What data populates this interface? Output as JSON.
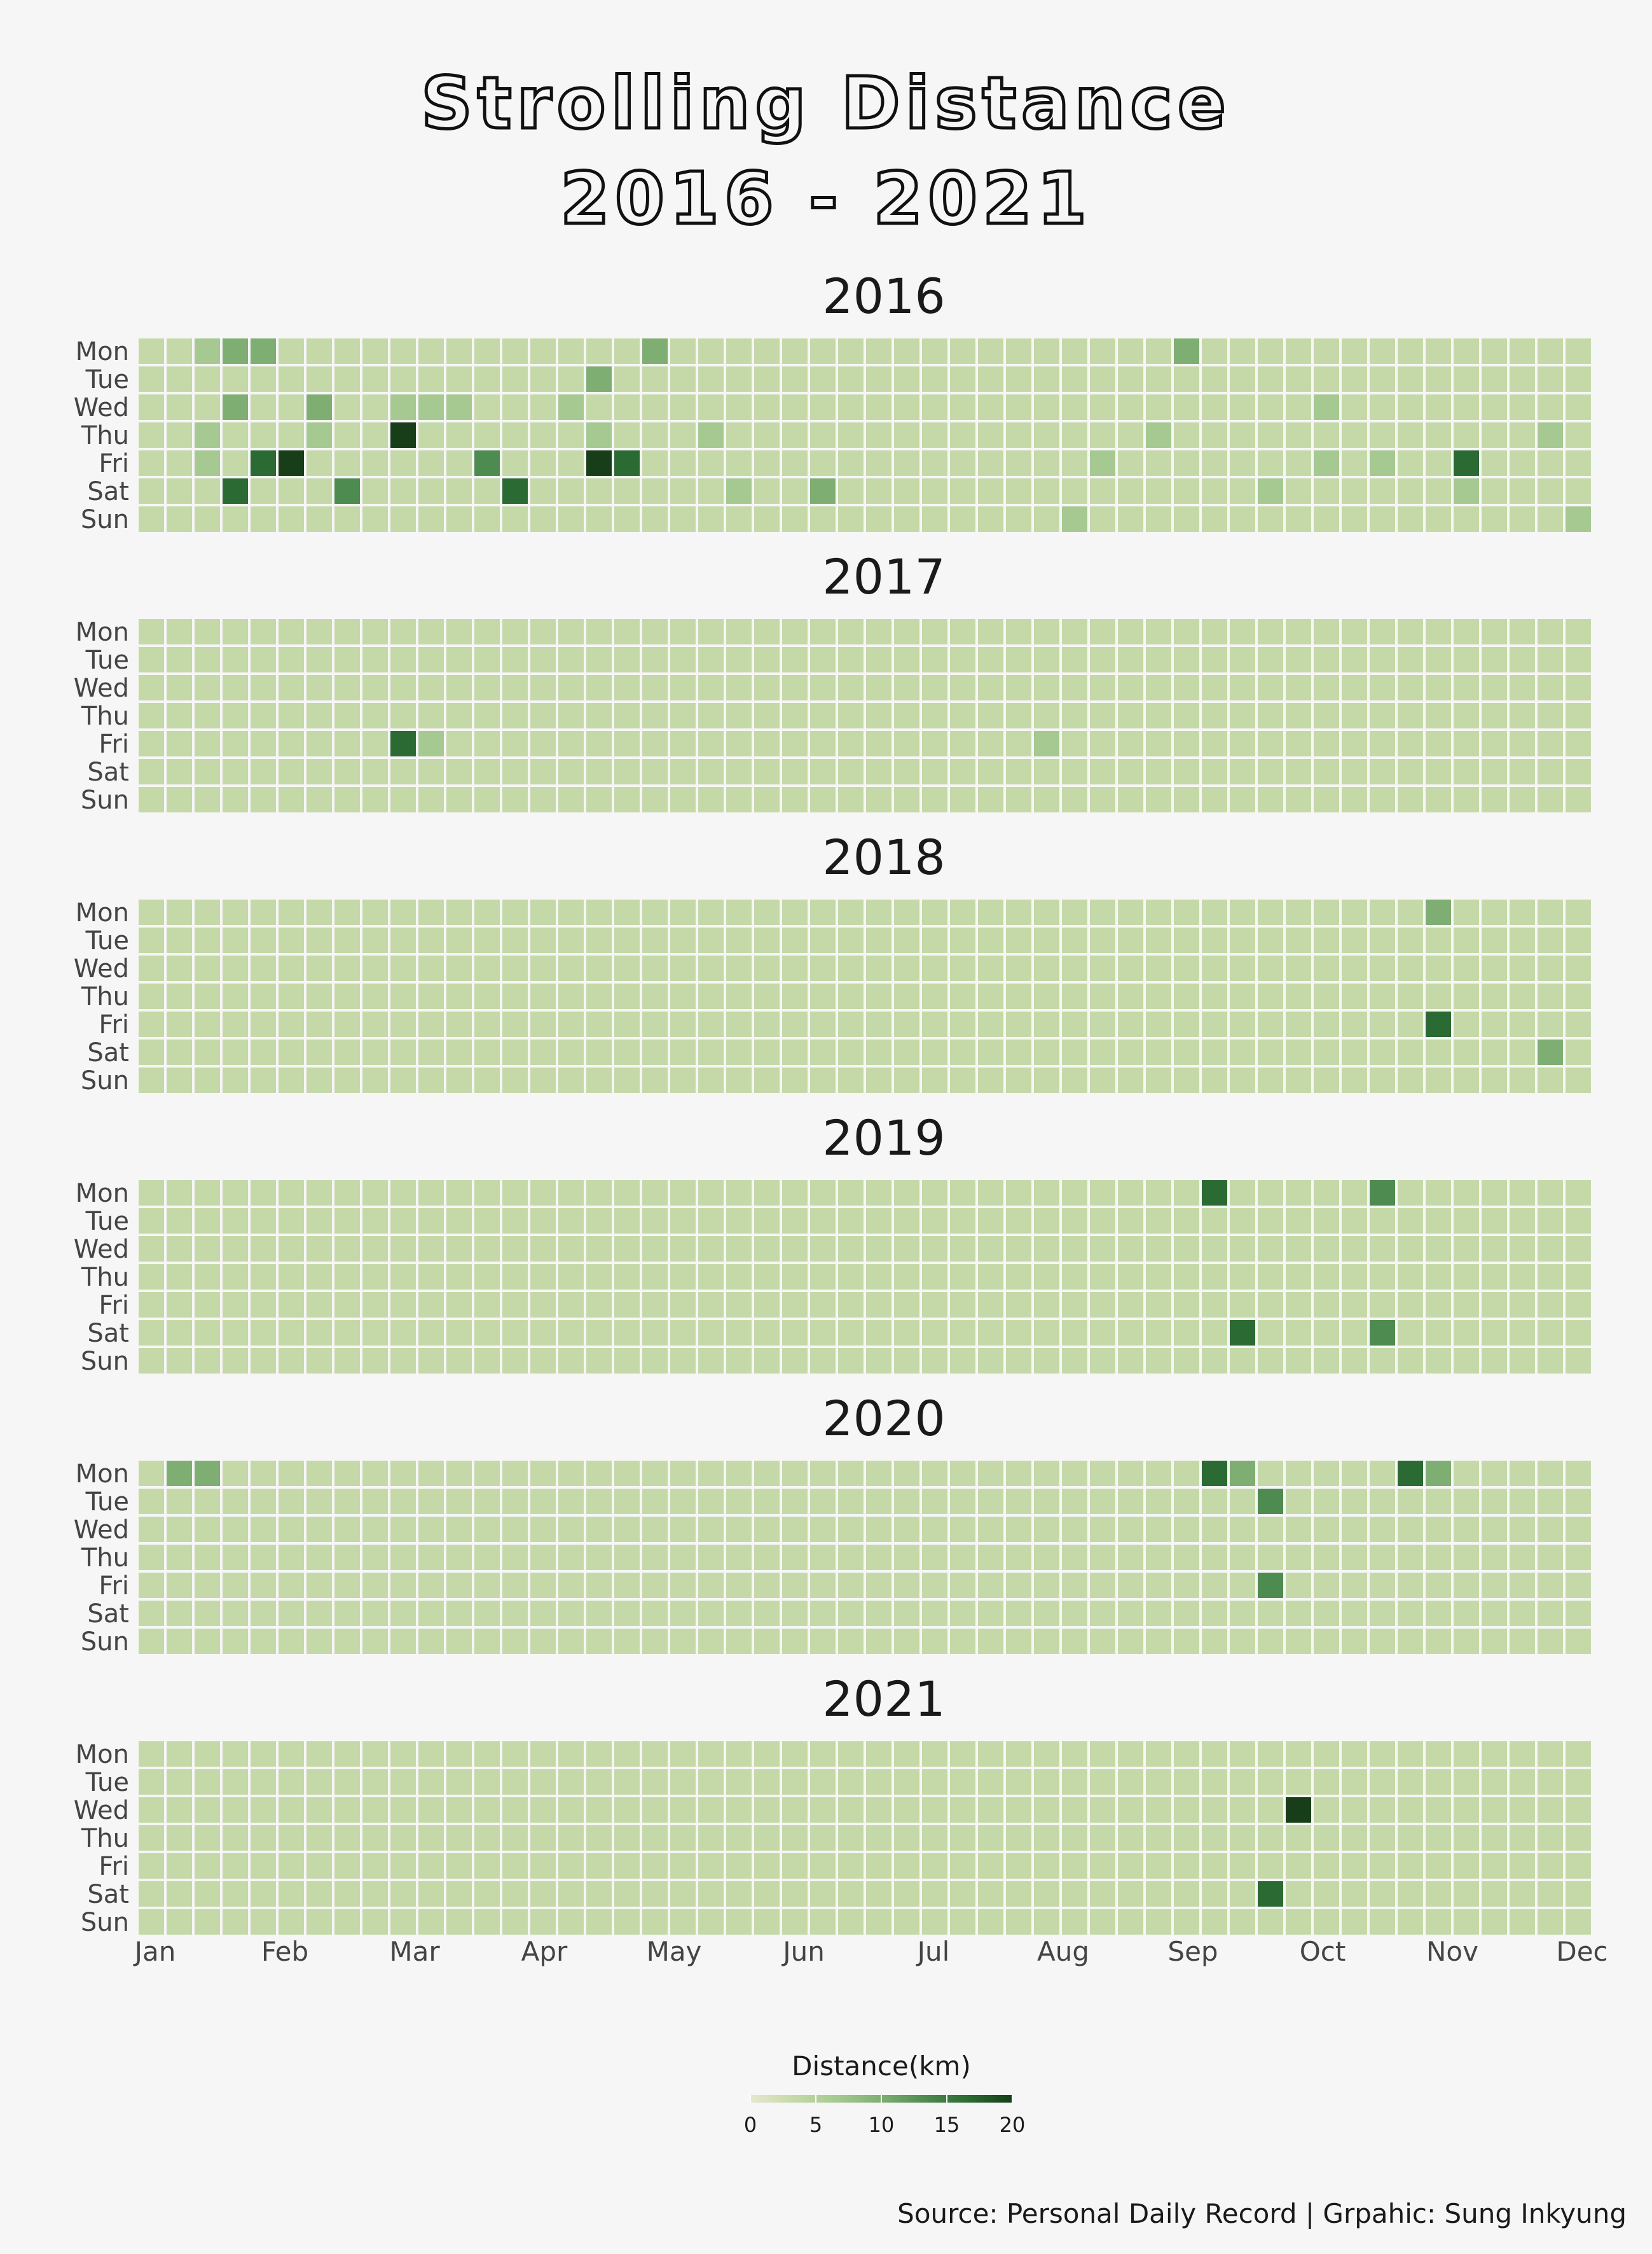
{
  "title": {
    "line1": "Strolling Distance",
    "line2": "2016 - 2021"
  },
  "caption": "Source: Personal Daily Record | Grpahic: Sung Inkyung",
  "chart_data": {
    "type": "heatmap",
    "subtype": "calendar",
    "title": "Strolling Distance 2016 - 2021",
    "rows": [
      "Mon",
      "Tue",
      "Wed",
      "Thu",
      "Fri",
      "Sat",
      "Sun"
    ],
    "x_tick_labels": [
      "Jan",
      "Feb",
      "Mar",
      "Apr",
      "May",
      "Jun",
      "Jul",
      "Aug",
      "Sep",
      "Oct",
      "Nov",
      "Dec"
    ],
    "years": [
      "2016",
      "2017",
      "2018",
      "2019",
      "2020",
      "2021"
    ],
    "value_scale": {
      "label": "Distance(km)",
      "min": 0,
      "max": 20,
      "ticks": [
        0,
        5,
        10,
        15,
        20
      ],
      "colors": [
        "#e8e6d0",
        "#c5d9a8",
        "#a5c990",
        "#7fae72",
        "#4e8b50",
        "#2b6a33",
        "#173e18"
      ]
    },
    "levels": [
      {
        "year": "2016",
        "level_grid": [
          "1123311111111111113111111111111111111311111111111111",
          "1111111111111111311111111111111111111111111111111111",
          "1113113112221112111111111111111111111111112111111111",
          "1121112116111111211121111111111111112111111111111121",
          "1121561111114111651111111111111111211111112121151111",
          "1115111411111511111112113111111111111111211111121111",
          "1111111111111111111111111111111112111111111111111112"
        ]
      },
      {
        "year": "2017",
        "level_grid": [
          "1111111111111111111111111111111111111111111111111111",
          "1111111111111111111111111111111111111111111111111111",
          "1111111111111111111111111111111111111111111111111111",
          "1111111111111111111111111111111111111111111111111111",
          "1111111115211111111111111111111121111111111111111111",
          "1111111111111111111111111111111111111111111111111111",
          "1111111111111111111111111111111111111111111111111111"
        ]
      },
      {
        "year": "2018",
        "level_grid": [
          "1111111111111111111111111111111111111111111111311111",
          "1111111111111111111111111111111111111111111111111111",
          "1111111111111111111111111111111111111111111111111111",
          "1111111111111111111111111111111111111111111111111111",
          "1111111111111111111111111111111111111111111111511111",
          "1111111111111111111111111111111111111111111111111131",
          "1111111111111111111111111111111111111111111111111111"
        ]
      },
      {
        "year": "2019",
        "level_grid": [
          "1111111111111111111111111111111111111151111141111111",
          "1111111111111111111111111111111111111111111111111111",
          "1111111111111111111111111111111111111111111111111111",
          "1111111111111111111111111111111111111111111111111111",
          "1111111111111111111111111111111111111111111111111111",
          "1111111111111111111111111111111111111115111141111111",
          "1111111111111111111111111111111111111111111111111111"
        ]
      },
      {
        "year": "2020",
        "level_grid": [
          "1331111111111111111111111111111111111153111115311111",
          "1111111111111111111111111111111111111111411111111111",
          "1111111111111111111111111111111111111111111111111111",
          "1111111111111111111111111111111111111111111111111111",
          "1111111111111111111111111111111111111111411111111111",
          "1111111111111111111111111111111111111111111111111111",
          "1111111111111111111111111111111111111111111111111111"
        ]
      },
      {
        "year": "2021",
        "level_grid": [
          "1111111111111111111111111111111111111111111111111111",
          "1111111111111111111111111111111111111111111111111111",
          "1111111111111111111111111111111111111111161111111111",
          "1111111111111111111111111111111111111111111111111111",
          "1111111111111111111111111111111111111111111111111111",
          "1111111111111111111111111111111111111111511111111111",
          "1111111111111111111111111111111111111111111111111111"
        ]
      }
    ],
    "grid": false,
    "legend_position": "bottom"
  }
}
